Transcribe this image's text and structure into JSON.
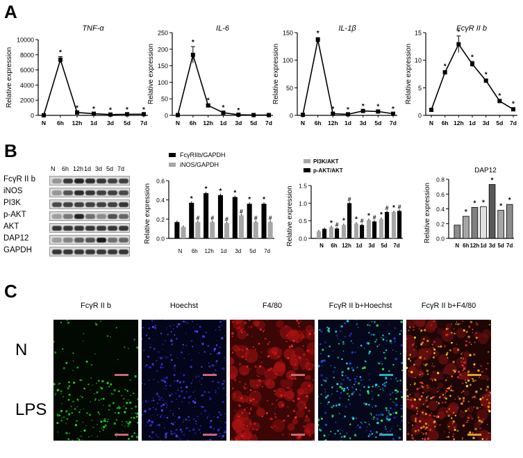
{
  "panels": {
    "a": "A",
    "b": "B",
    "c": "C"
  },
  "line_charts": [
    {
      "title": "TNF-α",
      "ylabel": "Relative expression",
      "categories": [
        "N",
        "6h",
        "12h",
        "1d",
        "3d",
        "5d",
        "7d"
      ],
      "values": [
        20,
        7350,
        380,
        220,
        110,
        150,
        160
      ],
      "errors": [
        5,
        400,
        50,
        40,
        20,
        30,
        30
      ],
      "ylim": [
        0,
        10000
      ],
      "yticks": [
        "0",
        "2000",
        "4000",
        "6000",
        "8000",
        "10000"
      ],
      "stars": [
        false,
        true,
        true,
        true,
        true,
        true,
        true
      ]
    },
    {
      "title": "IL-6",
      "ylabel": "Relative expression",
      "categories": [
        "N",
        "6h",
        "12h",
        "1d",
        "3d",
        "5d",
        "7d"
      ],
      "values": [
        1,
        183,
        30,
        8,
        2,
        1,
        1
      ],
      "errors": [
        0.5,
        25,
        3,
        2,
        0.5,
        0.3,
        0.3
      ],
      "ylim": [
        0,
        250
      ],
      "yticks": [
        "0",
        "50",
        "100",
        "150",
        "200",
        "250"
      ],
      "stars": [
        false,
        true,
        true,
        true,
        true,
        false,
        false
      ]
    },
    {
      "title": "IL-1β",
      "ylabel": "Relative expression",
      "categories": [
        "N",
        "6h",
        "12h",
        "1d",
        "3d",
        "5d",
        "7d"
      ],
      "values": [
        1,
        137,
        3,
        2,
        8,
        7,
        3
      ],
      "errors": [
        0.3,
        4,
        0.5,
        0.5,
        1,
        1,
        0.5
      ],
      "ylim": [
        0,
        150
      ],
      "yticks": [
        "0",
        "50",
        "100",
        "150"
      ],
      "stars": [
        false,
        true,
        true,
        true,
        true,
        true,
        true
      ]
    },
    {
      "title": "FcγR II b",
      "ylabel": "Relative expression",
      "categories": [
        "N",
        "6h",
        "12h",
        "1d",
        "3d",
        "5d",
        "7d"
      ],
      "values": [
        1,
        7.8,
        12.9,
        9.3,
        6.3,
        2.6,
        1.1
      ],
      "errors": [
        0.1,
        0.3,
        1.5,
        0.5,
        0.3,
        0.2,
        0.2
      ],
      "ylim": [
        0,
        15
      ],
      "yticks": [
        "0",
        "5",
        "10",
        "15"
      ],
      "stars": [
        false,
        true,
        true,
        true,
        true,
        true,
        true
      ]
    }
  ],
  "blot": {
    "lanes": [
      "N",
      "6h",
      "12h",
      "1d",
      "3d",
      "5d",
      "7d"
    ],
    "rows": [
      {
        "label": "FcγR II b",
        "intensity": [
          0.35,
          0.85,
          0.95,
          0.9,
          0.85,
          0.8,
          0.8
        ]
      },
      {
        "label": "iNOS",
        "intensity": [
          0.35,
          0.7,
          0.9,
          0.85,
          0.8,
          0.8,
          0.75
        ]
      },
      {
        "label": "PI3K",
        "intensity": [
          0.75,
          0.8,
          0.8,
          0.8,
          0.8,
          0.8,
          0.85
        ]
      },
      {
        "label": "p-AKT",
        "intensity": [
          0.3,
          0.5,
          0.95,
          0.55,
          0.4,
          0.7,
          0.6
        ]
      },
      {
        "label": "AKT",
        "intensity": [
          0.85,
          0.85,
          0.85,
          0.85,
          0.85,
          0.85,
          0.85
        ]
      },
      {
        "label": "DAP12",
        "intensity": [
          0.3,
          0.45,
          0.65,
          0.7,
          1.0,
          0.55,
          0.6
        ]
      },
      {
        "label": "GAPDH",
        "intensity": [
          0.85,
          0.85,
          0.85,
          0.85,
          0.85,
          0.85,
          0.85
        ]
      }
    ]
  },
  "bar_charts": [
    {
      "type": "bar",
      "ylabel": "Relative  expression",
      "categories": [
        "N",
        "6h",
        "12h",
        "1d",
        "3d",
        "5d",
        "7d"
      ],
      "series": [
        {
          "name": "FcγRIIb/GAPDH",
          "color": "#000000",
          "values": [
            0.17,
            0.37,
            0.47,
            0.45,
            0.43,
            0.36,
            0.36
          ]
        },
        {
          "name": "iNOS/GAPDH",
          "color": "#a6a6a6",
          "values": [
            0.12,
            0.17,
            0.17,
            0.16,
            0.24,
            0.17,
            0.17
          ]
        }
      ],
      "ylim": [
        0,
        0.6
      ],
      "yticks": [
        "0.0",
        "0.2",
        "0.4",
        "0.6"
      ],
      "marks1": [
        "",
        "*",
        "*",
        "*",
        "*",
        "*",
        "*"
      ],
      "marks2": [
        "",
        "#",
        "#",
        "#",
        "#",
        "#",
        "#"
      ]
    },
    {
      "type": "bar",
      "ylabel": "Relative  expression",
      "categories": [
        "N",
        "6h",
        "12h",
        "1d",
        "3d",
        "5d",
        "7d"
      ],
      "series": [
        {
          "name": "PI3K/AKT",
          "color": "#a6a6a6",
          "values": [
            0.2,
            0.32,
            0.38,
            0.42,
            0.52,
            0.55,
            0.75
          ]
        },
        {
          "name": "p-AKT/AKT",
          "color": "#000000",
          "values": [
            0.27,
            0.28,
            1.0,
            0.38,
            0.48,
            0.75,
            0.78
          ]
        }
      ],
      "ylim": [
        0,
        1.5
      ],
      "yticks": [
        "0.0",
        "0.5",
        "1.0",
        "1.5"
      ],
      "marks1": [
        "",
        "*",
        "*",
        "*",
        "*",
        "*",
        "*"
      ],
      "marks2": [
        "",
        "#",
        "#",
        "#",
        "#",
        "#",
        "#"
      ]
    },
    {
      "type": "bar",
      "title": "DAP12",
      "ylabel": "Relative  expression",
      "categories": [
        "N",
        "6h",
        "12h",
        "1d",
        "3d",
        "5d",
        "7d"
      ],
      "series": [
        {
          "name": "DAP12",
          "values": [
            0.18,
            0.3,
            0.42,
            0.43,
            0.73,
            0.38,
            0.46
          ],
          "colors": [
            "#8c8c8c",
            "#a6a6a6",
            "#808080",
            "#e0e0e0",
            "#595959",
            "#a6a6a6",
            "#8c8c8c"
          ]
        }
      ],
      "ylim": [
        0,
        0.8
      ],
      "yticks": [
        "0.0",
        "0.2",
        "0.4",
        "0.6",
        "0.8"
      ],
      "marks1": [
        "",
        "*",
        "*",
        "*",
        "*",
        "*",
        "*"
      ]
    }
  ],
  "micro": {
    "columns": [
      "FcγR II b",
      "Hoechst",
      "F4/80",
      "FcγR II b+Hoechst",
      "FcγR II b+F4/80"
    ],
    "rows": [
      "N",
      "LPS"
    ]
  }
}
